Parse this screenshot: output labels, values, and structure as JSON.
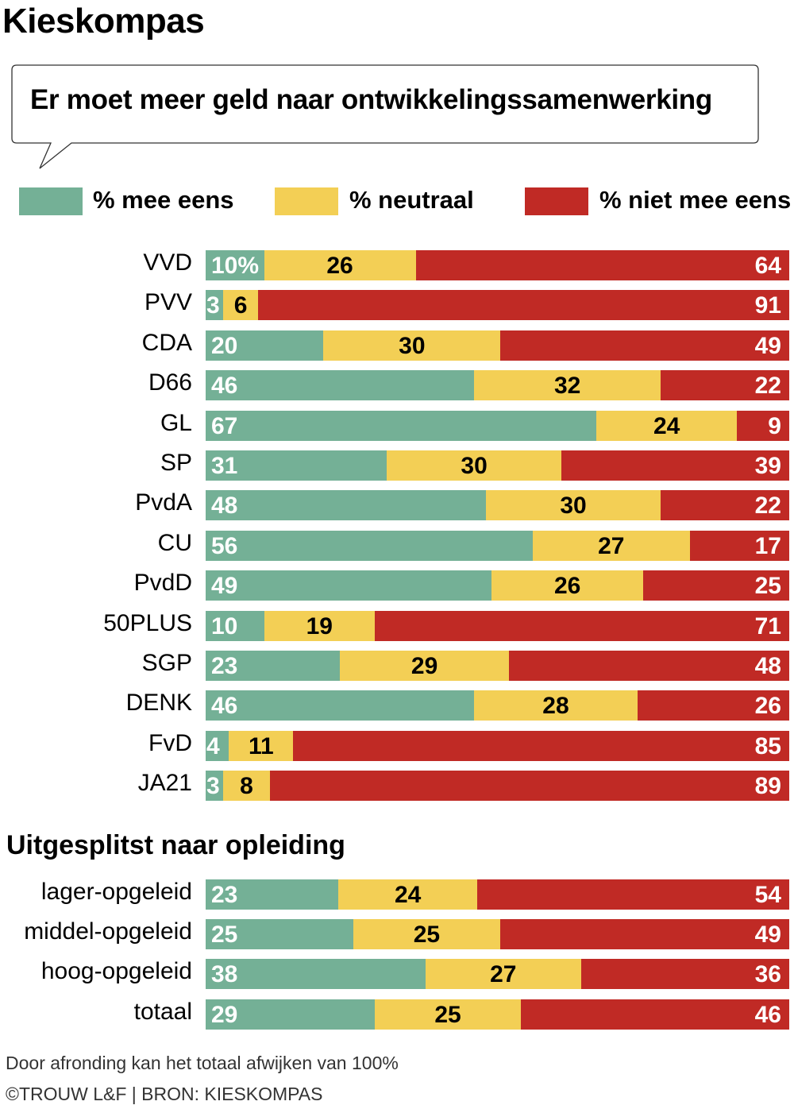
{
  "title": "Kieskompas",
  "question": "Er moet meer geld naar ontwikkelingssamenwerking",
  "colors": {
    "eens": "#74b096",
    "neutraal": "#f3cf55",
    "oneens": "#c02a25"
  },
  "legend": [
    "% mee eens",
    "% neutraal",
    "% niet mee eens"
  ],
  "subheading": "Uitgesplitst naar opleiding",
  "footnote": "Door afronding kan het totaal afwijken van 100%",
  "credit": "©TROUW L&F | BRON: KIESKOMPAS",
  "chart_data": [
    {
      "type": "bar",
      "stacked": true,
      "orientation": "horizontal",
      "first_label_suffix": "%",
      "categories": [
        "VVD",
        "PVV",
        "CDA",
        "D66",
        "GL",
        "SP",
        "PvdA",
        "CU",
        "PvdD",
        "50PLUS",
        "SGP",
        "DENK",
        "FvD",
        "JA21"
      ],
      "series": [
        {
          "name": "% mee eens",
          "values": [
            10,
            3,
            20,
            46,
            67,
            31,
            48,
            56,
            49,
            10,
            23,
            46,
            4,
            3
          ]
        },
        {
          "name": "% neutraal",
          "values": [
            26,
            6,
            30,
            32,
            24,
            30,
            30,
            27,
            26,
            19,
            29,
            28,
            11,
            8
          ]
        },
        {
          "name": "% niet mee eens",
          "values": [
            64,
            91,
            49,
            22,
            9,
            39,
            22,
            17,
            25,
            71,
            48,
            26,
            85,
            89
          ]
        }
      ]
    },
    {
      "type": "bar",
      "stacked": true,
      "orientation": "horizontal",
      "title": "Uitgesplitst naar opleiding",
      "categories": [
        "lager-opgeleid",
        "middel-opgeleid",
        "hoog-opgeleid",
        "totaal"
      ],
      "series": [
        {
          "name": "% mee eens",
          "values": [
            23,
            25,
            38,
            29
          ]
        },
        {
          "name": "% neutraal",
          "values": [
            24,
            25,
            27,
            25
          ]
        },
        {
          "name": "% niet mee eens",
          "values": [
            54,
            49,
            36,
            46
          ]
        }
      ]
    }
  ]
}
